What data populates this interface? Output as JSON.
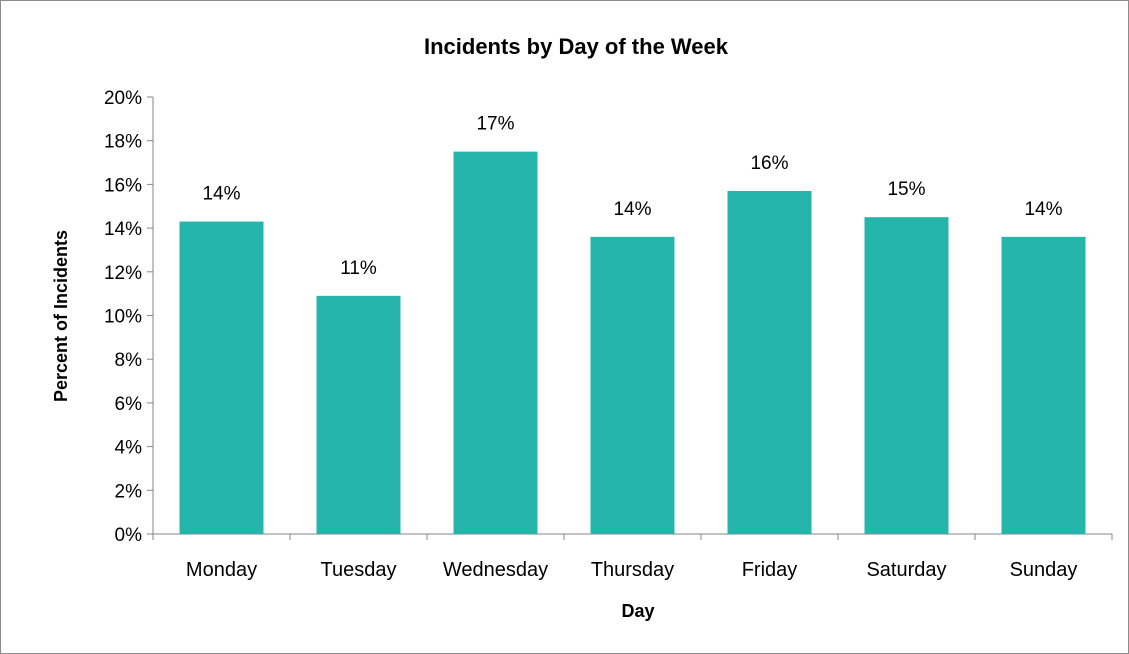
{
  "chart_data": {
    "type": "bar",
    "title": "Incidents by Day of the Week",
    "xlabel": "Day",
    "ylabel": "Percent of Incidents",
    "categories": [
      "Monday",
      "Tuesday",
      "Wednesday",
      "Thursday",
      "Friday",
      "Saturday",
      "Sunday"
    ],
    "values": [
      14.3,
      10.9,
      17.5,
      13.6,
      15.7,
      14.5,
      13.6
    ],
    "data_labels": [
      "14%",
      "11%",
      "17%",
      "14%",
      "16%",
      "15%",
      "14%"
    ],
    "ylim": [
      0,
      20
    ],
    "y_ticks": [
      0,
      2,
      4,
      6,
      8,
      10,
      12,
      14,
      16,
      18,
      20
    ],
    "y_tick_labels": [
      "0%",
      "2%",
      "4%",
      "6%",
      "8%",
      "10%",
      "12%",
      "14%",
      "16%",
      "18%",
      "20%"
    ],
    "grid": false,
    "legend": "none",
    "bar_color": "#26b5ab"
  }
}
